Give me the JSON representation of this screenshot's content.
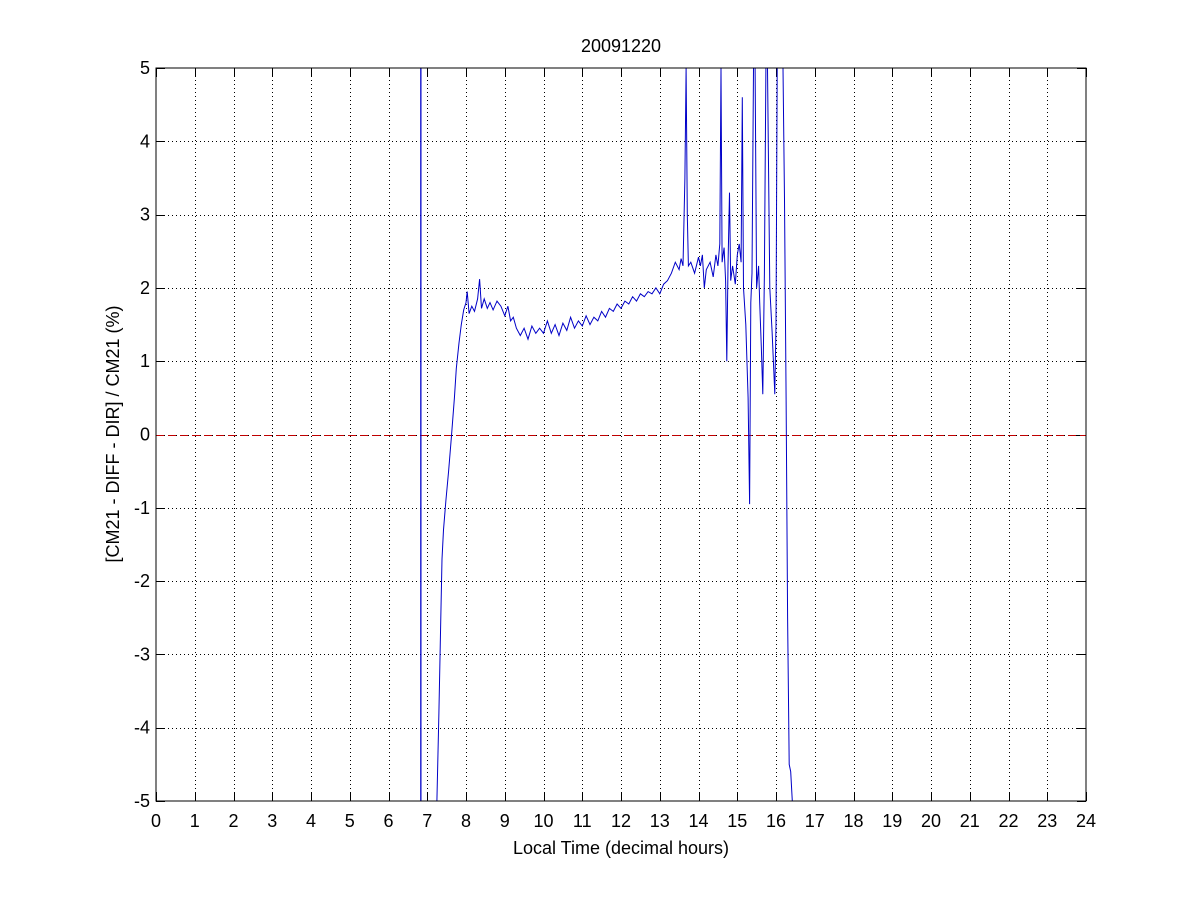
{
  "chart_data": {
    "type": "line",
    "title": "20091220",
    "xlabel": "Local Time (decimal hours)",
    "ylabel": "[CM21 - DIFF - DIR] / CM21 (%)",
    "xlim": [
      0,
      24
    ],
    "ylim": [
      -5,
      5
    ],
    "xticks": [
      0,
      1,
      2,
      3,
      4,
      5,
      6,
      7,
      8,
      9,
      10,
      11,
      12,
      13,
      14,
      15,
      16,
      17,
      18,
      19,
      20,
      21,
      22,
      23,
      24
    ],
    "yticks": [
      5,
      4,
      3,
      2,
      1,
      0,
      -1,
      -2,
      -3,
      -4,
      -5
    ],
    "grid": true,
    "legend": "none",
    "colors": {
      "series": "#0000c8",
      "reference": "#c00000",
      "grid": "#000000"
    },
    "reference_line": {
      "y": 0,
      "style": "dashed"
    },
    "series": [
      {
        "values": [
          [
            6.83,
            -5.0
          ],
          [
            6.83,
            5.0
          ],
          [
            6.84,
            5.0
          ],
          [
            6.84,
            -5.0
          ],
          [
            7.25,
            -5.0
          ],
          [
            7.3,
            -3.8
          ],
          [
            7.35,
            -2.5
          ],
          [
            7.38,
            -1.7
          ],
          [
            7.42,
            -1.3
          ],
          [
            7.48,
            -0.9
          ],
          [
            7.55,
            -0.5
          ],
          [
            7.62,
            -0.05
          ],
          [
            7.7,
            0.5
          ],
          [
            7.75,
            0.9
          ],
          [
            7.82,
            1.25
          ],
          [
            7.88,
            1.5
          ],
          [
            7.94,
            1.7
          ],
          [
            8.0,
            1.8
          ],
          [
            8.03,
            1.95
          ],
          [
            8.08,
            1.65
          ],
          [
            8.15,
            1.75
          ],
          [
            8.22,
            1.68
          ],
          [
            8.3,
            1.85
          ],
          [
            8.35,
            2.12
          ],
          [
            8.4,
            1.72
          ],
          [
            8.47,
            1.85
          ],
          [
            8.55,
            1.72
          ],
          [
            8.62,
            1.8
          ],
          [
            8.7,
            1.7
          ],
          [
            8.8,
            1.82
          ],
          [
            8.9,
            1.75
          ],
          [
            9.0,
            1.62
          ],
          [
            9.08,
            1.75
          ],
          [
            9.15,
            1.55
          ],
          [
            9.22,
            1.6
          ],
          [
            9.3,
            1.45
          ],
          [
            9.4,
            1.35
          ],
          [
            9.5,
            1.45
          ],
          [
            9.6,
            1.3
          ],
          [
            9.7,
            1.48
          ],
          [
            9.8,
            1.38
          ],
          [
            9.9,
            1.45
          ],
          [
            10.0,
            1.38
          ],
          [
            10.1,
            1.55
          ],
          [
            10.2,
            1.38
          ],
          [
            10.3,
            1.5
          ],
          [
            10.4,
            1.35
          ],
          [
            10.5,
            1.52
          ],
          [
            10.6,
            1.42
          ],
          [
            10.7,
            1.6
          ],
          [
            10.8,
            1.45
          ],
          [
            10.9,
            1.55
          ],
          [
            11.0,
            1.48
          ],
          [
            11.1,
            1.62
          ],
          [
            11.2,
            1.5
          ],
          [
            11.3,
            1.6
          ],
          [
            11.4,
            1.55
          ],
          [
            11.5,
            1.68
          ],
          [
            11.6,
            1.6
          ],
          [
            11.7,
            1.72
          ],
          [
            11.8,
            1.68
          ],
          [
            11.9,
            1.78
          ],
          [
            12.0,
            1.72
          ],
          [
            12.1,
            1.82
          ],
          [
            12.2,
            1.78
          ],
          [
            12.3,
            1.88
          ],
          [
            12.4,
            1.82
          ],
          [
            12.5,
            1.92
          ],
          [
            12.6,
            1.88
          ],
          [
            12.7,
            1.95
          ],
          [
            12.8,
            1.92
          ],
          [
            12.9,
            2.0
          ],
          [
            13.0,
            1.92
          ],
          [
            13.1,
            2.05
          ],
          [
            13.2,
            2.1
          ],
          [
            13.3,
            2.2
          ],
          [
            13.4,
            2.35
          ],
          [
            13.5,
            2.25
          ],
          [
            13.55,
            2.4
          ],
          [
            13.6,
            2.3
          ],
          [
            13.65,
            3.5
          ],
          [
            13.68,
            5.0
          ],
          [
            13.71,
            3.0
          ],
          [
            13.74,
            2.3
          ],
          [
            13.8,
            2.35
          ],
          [
            13.9,
            2.2
          ],
          [
            14.0,
            2.42
          ],
          [
            14.05,
            2.3
          ],
          [
            14.1,
            2.45
          ],
          [
            14.15,
            2.0
          ],
          [
            14.2,
            2.25
          ],
          [
            14.3,
            2.35
          ],
          [
            14.38,
            2.15
          ],
          [
            14.45,
            2.45
          ],
          [
            14.5,
            2.3
          ],
          [
            14.55,
            2.6
          ],
          [
            14.58,
            5.0
          ],
          [
            14.61,
            2.35
          ],
          [
            14.66,
            2.55
          ],
          [
            14.7,
            2.1
          ],
          [
            14.73,
            1.0
          ],
          [
            14.76,
            2.3
          ],
          [
            14.8,
            3.3
          ],
          [
            14.83,
            2.1
          ],
          [
            14.88,
            2.3
          ],
          [
            14.95,
            2.05
          ],
          [
            15.0,
            2.45
          ],
          [
            15.05,
            2.6
          ],
          [
            15.1,
            2.35
          ],
          [
            15.13,
            4.6
          ],
          [
            15.16,
            2.0
          ],
          [
            15.22,
            1.5
          ],
          [
            15.28,
            0.5
          ],
          [
            15.32,
            -0.95
          ],
          [
            15.35,
            1.8
          ],
          [
            15.38,
            2.2
          ],
          [
            15.42,
            5.0
          ],
          [
            15.46,
            5.0
          ],
          [
            15.5,
            2.0
          ],
          [
            15.55,
            2.3
          ],
          [
            15.58,
            1.8
          ],
          [
            15.62,
            1.2
          ],
          [
            15.66,
            0.55
          ],
          [
            15.7,
            2.2
          ],
          [
            15.74,
            5.0
          ],
          [
            15.78,
            5.0
          ],
          [
            15.84,
            2.0
          ],
          [
            15.9,
            1.4
          ],
          [
            15.94,
            0.9
          ],
          [
            15.97,
            0.55
          ],
          [
            16.0,
            1.5
          ],
          [
            16.03,
            5.0
          ],
          [
            16.18,
            5.0
          ],
          [
            16.22,
            3.2
          ],
          [
            16.26,
            0.5
          ],
          [
            16.3,
            -2.5
          ],
          [
            16.34,
            -4.5
          ],
          [
            16.38,
            -4.6
          ],
          [
            16.42,
            -5.0
          ]
        ]
      }
    ]
  }
}
